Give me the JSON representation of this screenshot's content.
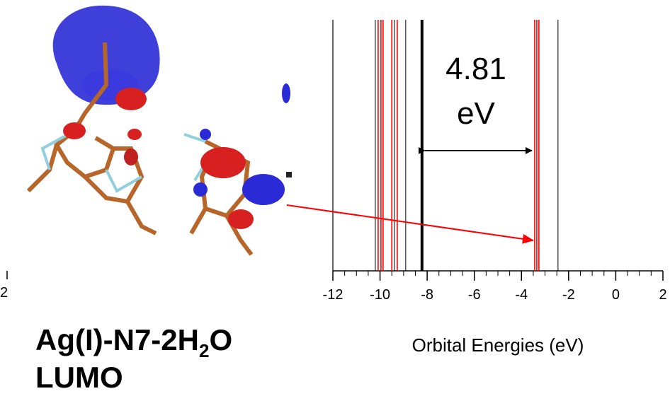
{
  "chart_data": {
    "type": "levels",
    "xlabel": "Orbital Energies (eV)",
    "xlim": [
      -12,
      2
    ],
    "xticks": [
      -12,
      -10,
      -8,
      -6,
      -4,
      -2,
      0,
      2
    ],
    "xminor_step": 0.5,
    "series": [
      {
        "color": "#000000",
        "linewidth": 1,
        "values": [
          -10.2,
          -9.39,
          -8.91,
          -2.45
        ]
      },
      {
        "color": "#ff0000",
        "linewidth": 1.6,
        "values": [
          -10.08,
          -9.96,
          -9.87,
          -9.5,
          -9.27,
          -3.44,
          -3.35,
          -3.26
        ]
      },
      {
        "color": "#000000",
        "linewidth": 4,
        "values": [
          -8.22
        ]
      }
    ],
    "annotation": [
      "4.81",
      "eV"
    ],
    "molecule_label": [
      "Ag(I)-N7-2H",
      "2",
      "O"
    ],
    "orbital": "LUMO",
    "cropped_tick_label": "2"
  }
}
